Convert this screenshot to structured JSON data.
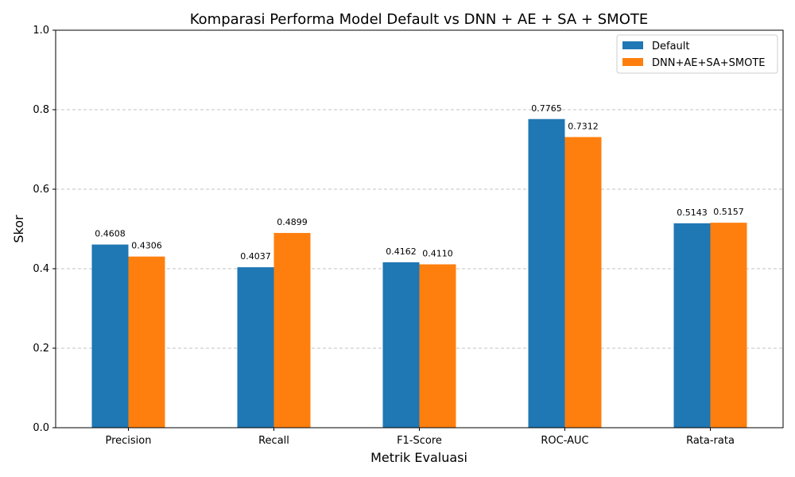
{
  "chart_data": {
    "type": "bar",
    "title": "Komparasi Performa Model Default vs DNN + AE + SA + SMOTE",
    "xlabel": "Metrik Evaluasi",
    "ylabel": "Skor",
    "categories": [
      "Precision",
      "Recall",
      "F1-Score",
      "ROC-AUC",
      "Rata-rata"
    ],
    "series": [
      {
        "name": "Default",
        "color": "#1f77b4",
        "values": [
          0.4608,
          0.4037,
          0.4162,
          0.7765,
          0.5143
        ],
        "labels": [
          "0.4608",
          "0.4037",
          "0.4162",
          "0.7765",
          "0.5143"
        ]
      },
      {
        "name": "DNN+AE+SA+SMOTE",
        "color": "#ff7f0e",
        "values": [
          0.4306,
          0.4899,
          0.411,
          0.7312,
          0.5157
        ],
        "labels": [
          "0.4306",
          "0.4899",
          "0.4110",
          "0.7312",
          "0.5157"
        ]
      }
    ],
    "ylim": [
      0,
      1.0
    ],
    "yticks": [
      0.0,
      0.2,
      0.4,
      0.6,
      0.8,
      1.0
    ],
    "ytick_labels": [
      "0.0",
      "0.2",
      "0.4",
      "0.6",
      "0.8",
      "1.0"
    ],
    "grid": "horizontal dashed",
    "legend_position": "top-right"
  }
}
